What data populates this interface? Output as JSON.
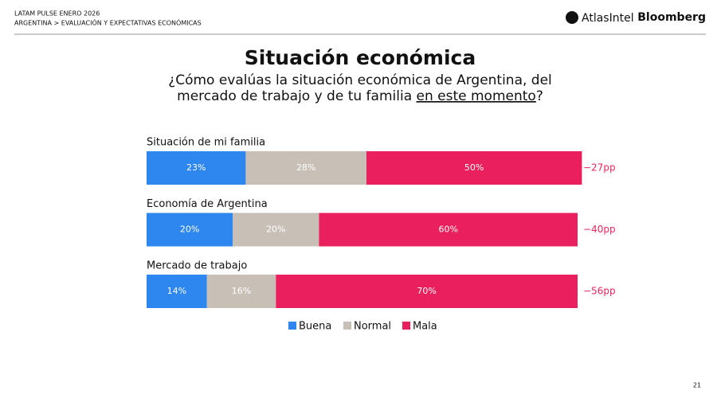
{
  "header": {
    "line1": "LATAM PULSE ENERO 2026",
    "line2": "ARGENTINA > EVALUACIÓN Y EXPECTATIVAS ECONÓMICAS",
    "logo1": "AtlasIntel",
    "logo2": "Bloomberg"
  },
  "chart_data": {
    "type": "stacked-barh",
    "title": "Situación económica",
    "subtitle_line1": "¿Cómo evalúas la situación económica de Argentina, del",
    "subtitle_line2": "mercado de trabajo y de tu familia ",
    "subtitle_emphasis": "en este momento",
    "subtitle_end": "?",
    "categories": [
      "Situación de mi familia",
      "Economía de Argentina",
      "Mercado de trabajo"
    ],
    "series": [
      {
        "name": "Buena",
        "color": "#2e86ef",
        "values": [
          23,
          20,
          14
        ],
        "value_labels": [
          "23%",
          "20%",
          "14%"
        ]
      },
      {
        "name": "Normal",
        "color": "#c8bfb7",
        "values": [
          28,
          20,
          16
        ],
        "value_labels": [
          "28%",
          "20%",
          "16%"
        ]
      },
      {
        "name": "Mala",
        "color": "#ea1f5d",
        "values": [
          50,
          60,
          70
        ],
        "value_labels": [
          "50%",
          "60%",
          "70%"
        ]
      }
    ],
    "xlim": [
      0,
      100
    ],
    "annotations": [
      "−27pp",
      "−40pp",
      "−56pp"
    ]
  },
  "page_number": "21"
}
